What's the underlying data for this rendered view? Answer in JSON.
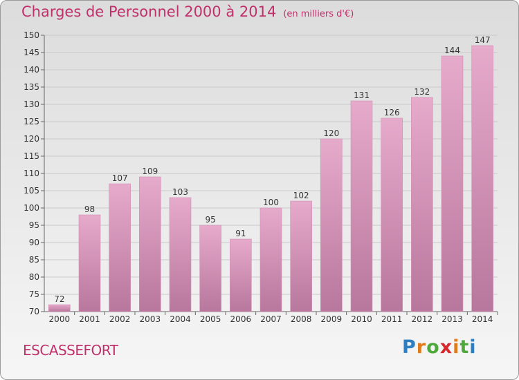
{
  "header": {
    "title": "Charges de Personnel 2000 à 2014",
    "subtitle": "(en milliers d'€)"
  },
  "place": "ESCASSEFORT",
  "logo": {
    "letters": [
      "P",
      "r",
      "o",
      "x",
      "i",
      "t",
      "i"
    ],
    "colors": [
      "#2e7fc2",
      "#e07a1a",
      "#4ea83c",
      "#d8282e",
      "#e07a1a",
      "#4ea83c",
      "#2e7fc2"
    ]
  },
  "colors": {
    "bar_light": "#e6aacb",
    "bar_dark": "#b8779d",
    "bar_edge": "#d290b5",
    "title": "#c0306a"
  },
  "chart_data": {
    "type": "bar",
    "categories": [
      "2000",
      "2001",
      "2002",
      "2003",
      "2004",
      "2005",
      "2006",
      "2007",
      "2008",
      "2009",
      "2010",
      "2011",
      "2012",
      "2013",
      "2014"
    ],
    "values": [
      72,
      98,
      107,
      109,
      103,
      95,
      91,
      100,
      102,
      120,
      131,
      126,
      132,
      144,
      147
    ],
    "title": "Charges de Personnel 2000 à 2014",
    "subtitle": "(en milliers d'€)",
    "ylim": [
      70,
      150
    ],
    "yticks": [
      70,
      75,
      80,
      85,
      90,
      95,
      100,
      105,
      110,
      115,
      120,
      125,
      130,
      135,
      140,
      145,
      150
    ],
    "grid": true,
    "legend": "none"
  }
}
